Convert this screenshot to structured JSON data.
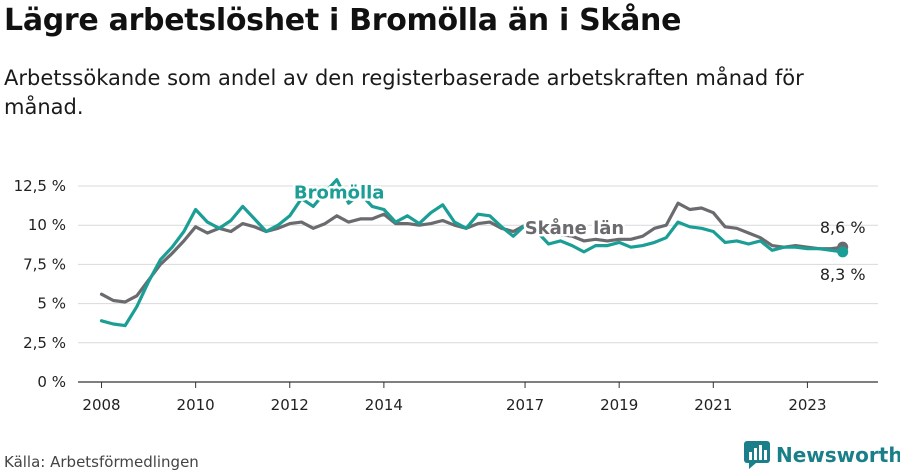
{
  "header": {
    "title": "Lägre arbetslöshet i Bromölla än i Skåne",
    "subtitle": "Arbetssökande som andel av den registerbaserade arbetskraften månad för månad."
  },
  "footer": {
    "source": "Källa: Arbetsförmedlingen",
    "brand": "Newsworthy"
  },
  "colors": {
    "bromolla": "#1a9e95",
    "skane": "#6b6b6f",
    "grid": "#d9d9d9",
    "brand": "#1b7f8a"
  },
  "chart_data": {
    "type": "line",
    "title": "Lägre arbetslöshet i Bromölla än i Skåne",
    "xlabel": "",
    "ylabel": "",
    "xlim": [
      2007.5,
      2024.5
    ],
    "ylim": [
      0,
      12.5
    ],
    "y_ticks": [
      0,
      2.5,
      5,
      7.5,
      10,
      12.5
    ],
    "y_tick_labels": [
      "0 %",
      "2,5 %",
      "5 %",
      "7,5 %",
      "10 %",
      "12,5 %"
    ],
    "x_ticks": [
      2008,
      2010,
      2012,
      2014,
      2017,
      2019,
      2021,
      2023
    ],
    "x_tick_labels": [
      "2008",
      "2010",
      "2012",
      "2014",
      "2017",
      "2019",
      "2021",
      "2023"
    ],
    "grid": true,
    "series": [
      {
        "name": "Bromölla",
        "label": "Bromölla",
        "end_label": "8,3 %",
        "x": [
          2008.0,
          2008.25,
          2008.5,
          2008.75,
          2009.0,
          2009.25,
          2009.5,
          2009.75,
          2010.0,
          2010.25,
          2010.5,
          2010.75,
          2011.0,
          2011.25,
          2011.5,
          2011.75,
          2012.0,
          2012.25,
          2012.5,
          2012.75,
          2013.0,
          2013.25,
          2013.5,
          2013.75,
          2014.0,
          2014.25,
          2014.5,
          2014.75,
          2015.0,
          2015.25,
          2015.5,
          2015.75,
          2016.0,
          2016.25,
          2016.5,
          2016.75,
          2017.0,
          2017.25,
          2017.5,
          2017.75,
          2018.0,
          2018.25,
          2018.5,
          2018.75,
          2019.0,
          2019.25,
          2019.5,
          2019.75,
          2020.0,
          2020.25,
          2020.5,
          2020.75,
          2021.0,
          2021.25,
          2021.5,
          2021.75,
          2022.0,
          2022.25,
          2022.5,
          2022.75,
          2023.0,
          2023.25,
          2023.5,
          2023.75
        ],
        "y": [
          3.9,
          3.7,
          3.6,
          4.8,
          6.4,
          7.8,
          8.6,
          9.6,
          11.0,
          10.2,
          9.8,
          10.3,
          11.2,
          10.4,
          9.6,
          10.0,
          10.6,
          11.7,
          11.2,
          12.1,
          12.9,
          11.4,
          12.0,
          11.2,
          11.0,
          10.2,
          10.6,
          10.1,
          10.8,
          11.3,
          10.2,
          9.8,
          10.7,
          10.6,
          9.9,
          9.3,
          10.0,
          9.6,
          8.8,
          9.0,
          8.7,
          8.3,
          8.7,
          8.7,
          8.9,
          8.6,
          8.7,
          8.9,
          9.2,
          10.2,
          9.9,
          9.8,
          9.6,
          8.9,
          9.0,
          8.8,
          9.0,
          8.4,
          8.6,
          8.6,
          8.5,
          8.5,
          8.4,
          8.3
        ]
      },
      {
        "name": "Skåne län",
        "label": "Skåne län",
        "end_label": "8,6 %",
        "x": [
          2008.0,
          2008.25,
          2008.5,
          2008.75,
          2009.0,
          2009.25,
          2009.5,
          2009.75,
          2010.0,
          2010.25,
          2010.5,
          2010.75,
          2011.0,
          2011.25,
          2011.5,
          2011.75,
          2012.0,
          2012.25,
          2012.5,
          2012.75,
          2013.0,
          2013.25,
          2013.5,
          2013.75,
          2014.0,
          2014.25,
          2014.5,
          2014.75,
          2015.0,
          2015.25,
          2015.5,
          2015.75,
          2016.0,
          2016.25,
          2016.5,
          2016.75,
          2017.0,
          2017.25,
          2017.5,
          2017.75,
          2018.0,
          2018.25,
          2018.5,
          2018.75,
          2019.0,
          2019.25,
          2019.5,
          2019.75,
          2020.0,
          2020.25,
          2020.5,
          2020.75,
          2021.0,
          2021.25,
          2021.5,
          2021.75,
          2022.0,
          2022.25,
          2022.5,
          2022.75,
          2023.0,
          2023.25,
          2023.5,
          2023.75
        ],
        "y": [
          5.6,
          5.2,
          5.1,
          5.5,
          6.5,
          7.5,
          8.2,
          9.0,
          9.9,
          9.5,
          9.8,
          9.6,
          10.1,
          9.9,
          9.6,
          9.8,
          10.1,
          10.2,
          9.8,
          10.1,
          10.6,
          10.2,
          10.4,
          10.4,
          10.7,
          10.1,
          10.1,
          10.0,
          10.1,
          10.3,
          10.0,
          9.8,
          10.1,
          10.2,
          9.8,
          9.6,
          10.0,
          9.8,
          9.6,
          9.4,
          9.3,
          9.0,
          9.1,
          9.0,
          9.1,
          9.1,
          9.3,
          9.8,
          10.0,
          11.4,
          11.0,
          11.1,
          10.8,
          9.9,
          9.8,
          9.5,
          9.2,
          8.7,
          8.6,
          8.7,
          8.6,
          8.5,
          8.5,
          8.6
        ]
      }
    ]
  }
}
